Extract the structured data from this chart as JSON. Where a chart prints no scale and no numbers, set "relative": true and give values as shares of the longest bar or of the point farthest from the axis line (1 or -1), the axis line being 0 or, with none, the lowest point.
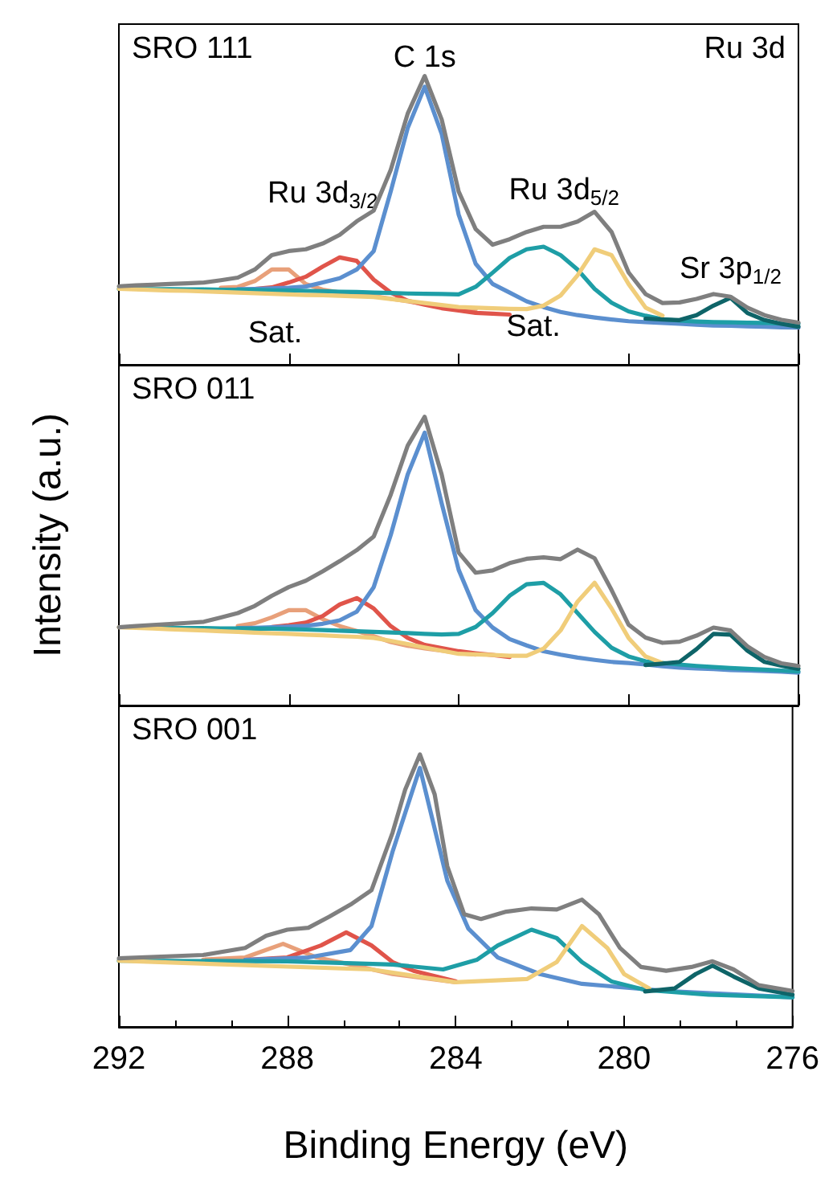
{
  "chart_data": [
    {
      "type": "line",
      "relative": true,
      "tick_labels": false,
      "categories": [
        null,
        null,
        null,
        null,
        null,
        null,
        null,
        null,
        null,
        null,
        null,
        null,
        null,
        null,
        null,
        null,
        null,
        null,
        null,
        null,
        null,
        null,
        null,
        null,
        null,
        null,
        null,
        null,
        null,
        null,
        null,
        null,
        null,
        null,
        null,
        null,
        null,
        null,
        null,
        null,
        null
      ],
      "annotations": [
        "SRO 111",
        "Ru 3d",
        "C 1s",
        "Ru 3d$_{3/2}$",
        "Ru 3d$_{5/2}$",
        "Sr 3p$_{1/2}$",
        "Sat.",
        "Sat."
      ],
      "series": [
        {
          "color": "#e8a07a",
          "values": [
            null,
            null,
            null,
            null,
            null,
            null,
            0.267,
            0.27,
            0.29,
            0.33,
            0.33,
            0.28,
            0.26,
            0.25,
            0.244,
            0.238,
            0.229,
            0.22,
            0.211,
            0.204,
            0.196,
            0.191,
            null,
            null,
            null,
            null,
            null,
            null,
            null,
            null,
            null,
            null,
            null,
            null,
            null,
            null,
            null,
            null,
            null,
            null,
            null
          ]
        },
        {
          "color": "#e0544a",
          "values": [
            null,
            null,
            null,
            null,
            null,
            null,
            null,
            null,
            0.263,
            0.268,
            0.285,
            0.305,
            0.34,
            0.372,
            0.36,
            0.295,
            0.25,
            0.222,
            0.208,
            0.196,
            0.188,
            0.18,
            0.177,
            0.174,
            null,
            null,
            null,
            null,
            null,
            null,
            null,
            null,
            null,
            null,
            null,
            null,
            null,
            null,
            null,
            null,
            null
          ]
        },
        {
          "color": "#5b8fcf",
          "values": [
            null,
            null,
            null,
            null,
            null,
            null,
            null,
            0.262,
            0.263,
            0.265,
            0.267,
            0.271,
            0.285,
            0.3,
            0.33,
            0.394,
            0.6,
            0.82,
            0.963,
            0.8,
            0.52,
            0.35,
            0.28,
            0.25,
            0.22,
            0.2,
            0.183,
            0.172,
            0.164,
            0.157,
            0.151,
            0.148,
            0.145,
            0.142,
            0.139,
            0.136,
            0.135,
            0.133,
            0.132,
            0.13,
            0.129
          ]
        },
        {
          "color": "#1e9ea6",
          "values": [
            0.263,
            0.263,
            0.262,
            0.262,
            0.261,
            0.261,
            0.26,
            0.26,
            0.259,
            0.258,
            0.258,
            0.256,
            0.255,
            0.253,
            0.252,
            0.25,
            0.249,
            0.247,
            0.246,
            0.245,
            0.244,
            0.27,
            0.319,
            0.37,
            0.4,
            0.409,
            0.38,
            0.33,
            0.263,
            0.215,
            0.185,
            0.17,
            0.158,
            0.153,
            0.15,
            0.148,
            0.147,
            0.146,
            0.145,
            0.143,
            0.142
          ]
        },
        {
          "color": "#f0cd7a",
          "values": [
            0.263,
            0.261,
            0.259,
            0.257,
            0.256,
            0.254,
            0.252,
            0.25,
            0.248,
            0.246,
            0.244,
            0.242,
            0.241,
            0.239,
            0.237,
            0.235,
            0.228,
            0.221,
            0.214,
            0.207,
            0.2,
            0.198,
            0.196,
            0.194,
            0.193,
            0.205,
            0.24,
            0.31,
            0.4,
            0.38,
            0.28,
            0.198,
            0.17,
            null,
            null,
            null,
            null,
            null,
            null,
            null,
            null
          ]
        },
        {
          "color": "#0e6468",
          "values": [
            null,
            null,
            null,
            null,
            null,
            null,
            null,
            null,
            null,
            null,
            null,
            null,
            null,
            null,
            null,
            null,
            null,
            null,
            null,
            null,
            null,
            null,
            null,
            null,
            null,
            null,
            null,
            null,
            null,
            null,
            null,
            0.16,
            0.157,
            0.155,
            0.172,
            0.205,
            0.232,
            0.179,
            0.155,
            0.142,
            0.132
          ]
        },
        {
          "color": "#7f7f7f",
          "values": [
            0.272,
            0.275,
            0.277,
            0.28,
            0.282,
            0.285,
            0.293,
            0.302,
            0.33,
            0.38,
            0.394,
            0.4,
            0.42,
            0.45,
            0.497,
            0.534,
            0.675,
            0.87,
            1,
            0.85,
            0.6,
            0.47,
            0.416,
            0.435,
            0.46,
            0.478,
            0.478,
            0.496,
            0.53,
            0.46,
            0.32,
            0.245,
            0.214,
            0.216,
            0.228,
            0.245,
            0.236,
            0.198,
            0.172,
            0.156,
            0.146
          ]
        }
      ]
    },
    {
      "type": "line",
      "relative": true,
      "tick_labels": false,
      "ylabel": "Intensity (a.u.)",
      "categories": [
        null,
        null,
        null,
        null,
        null,
        null,
        null,
        null,
        null,
        null,
        null,
        null,
        null,
        null,
        null,
        null,
        null,
        null,
        null,
        null,
        null,
        null,
        null,
        null,
        null,
        null,
        null,
        null,
        null,
        null,
        null,
        null,
        null,
        null,
        null,
        null,
        null,
        null,
        null,
        null,
        null
      ],
      "annotations": [
        "SRO 011"
      ],
      "series": [
        {
          "color": "#e8a07a",
          "values": [
            null,
            null,
            null,
            null,
            null,
            null,
            null,
            0.275,
            0.285,
            0.305,
            0.33,
            0.33,
            0.299,
            0.275,
            0.258,
            0.24,
            0.22,
            0.207,
            0.198,
            0.19,
            0.182,
            0.176,
            null,
            null,
            null,
            null,
            null,
            null,
            null,
            null,
            null,
            null,
            null,
            null,
            null,
            null,
            null,
            null,
            null,
            null,
            null
          ]
        },
        {
          "color": "#e0544a",
          "values": [
            null,
            null,
            null,
            null,
            null,
            null,
            null,
            null,
            null,
            0.272,
            0.278,
            0.287,
            0.31,
            0.35,
            0.372,
            0.336,
            0.275,
            0.234,
            0.21,
            0.199,
            0.188,
            0.181,
            0.175,
            0.168,
            null,
            null,
            null,
            null,
            null,
            null,
            null,
            null,
            null,
            null,
            null,
            null,
            null,
            null,
            null,
            null,
            null
          ]
        },
        {
          "color": "#5b8fcf",
          "values": [
            null,
            null,
            null,
            null,
            null,
            null,
            null,
            0.268,
            0.269,
            0.271,
            0.273,
            0.276,
            0.283,
            0.295,
            0.325,
            0.41,
            0.59,
            0.8,
            0.945,
            0.7,
            0.47,
            0.33,
            0.27,
            0.23,
            0.208,
            0.188,
            0.176,
            0.166,
            0.158,
            0.151,
            0.147,
            0.142,
            0.136,
            0.131,
            0.128,
            0.126,
            0.123,
            0.121,
            0.119,
            0.117,
            0.114
          ]
        },
        {
          "color": "#1e9ea6",
          "values": [
            null,
            null,
            0.27,
            0.269,
            0.268,
            0.268,
            0.267,
            0.267,
            0.266,
            0.266,
            0.265,
            0.263,
            0.261,
            0.259,
            0.257,
            0.255,
            0.253,
            0.251,
            0.248,
            0.246,
            0.248,
            0.272,
            0.32,
            0.38,
            0.42,
            0.425,
            0.385,
            0.32,
            0.255,
            0.2,
            0.17,
            0.153,
            0.147,
            0.142,
            0.137,
            0.133,
            0.13,
            0.127,
            0.124,
            0.121,
            0.118
          ]
        },
        {
          "color": "#f0cd7a",
          "values": [
            0.271,
            0.269,
            0.267,
            0.264,
            0.262,
            0.26,
            0.257,
            0.255,
            0.252,
            0.25,
            0.248,
            0.245,
            0.243,
            0.24,
            0.238,
            0.234,
            0.224,
            0.213,
            0.201,
            0.19,
            0.179,
            0.177,
            0.175,
            0.172,
            0.172,
            0.197,
            0.26,
            0.36,
            0.425,
            0.336,
            0.234,
            0.17,
            0.147,
            null,
            null,
            null,
            null,
            null,
            null,
            null,
            null
          ]
        },
        {
          "color": "#0e6468",
          "values": [
            null,
            null,
            null,
            null,
            null,
            null,
            null,
            null,
            null,
            null,
            null,
            null,
            null,
            null,
            null,
            null,
            null,
            null,
            null,
            null,
            null,
            null,
            null,
            null,
            null,
            null,
            null,
            null,
            null,
            null,
            null,
            0.14,
            0.145,
            0.151,
            0.195,
            0.248,
            0.245,
            0.19,
            0.151,
            0.138,
            0.127
          ]
        },
        {
          "color": "#7f7f7f",
          "values": [
            0.271,
            0.275,
            0.279,
            0.282,
            0.286,
            0.29,
            0.305,
            0.32,
            0.345,
            0.38,
            0.41,
            0.432,
            0.465,
            0.5,
            0.538,
            0.585,
            0.73,
            0.9,
            1,
            0.8,
            0.53,
            0.46,
            0.468,
            0.493,
            0.508,
            0.513,
            0.507,
            0.54,
            0.51,
            0.4,
            0.28,
            0.235,
            0.217,
            0.221,
            0.242,
            0.27,
            0.26,
            0.205,
            0.168,
            0.146,
            0.137
          ]
        }
      ]
    },
    {
      "type": "line",
      "relative": true,
      "xlim": [
        292,
        276
      ],
      "xticks": [
        292,
        288,
        284,
        280,
        276
      ],
      "tick_labels": "x",
      "xlabel": "Binding Energy (eV)",
      "annotations": [
        "SRO 001"
      ],
      "series": [
        {
          "color": "#e8a07a",
          "x": [
            290,
            289,
            288.1,
            287.3,
            286.5,
            285.5,
            284
          ],
          "values": [
            0.247,
            0.255,
            0.305,
            0.255,
            0.229,
            0.194,
            0.164
          ]
        },
        {
          "color": "#e0544a",
          "x": [
            289,
            288,
            287.2,
            286.6,
            286,
            285.5,
            285,
            284
          ],
          "values": [
            0.246,
            0.255,
            0.299,
            0.347,
            0.299,
            0.238,
            0.206,
            0.167
          ]
        },
        {
          "color": "#5b8fcf",
          "x": [
            289,
            287.5,
            286.5,
            286,
            285.5,
            284.85,
            284.2,
            283.7,
            283,
            282,
            281,
            279,
            276
          ],
          "values": [
            0.246,
            0.255,
            0.282,
            0.37,
            0.643,
            0.951,
            0.537,
            0.361,
            0.255,
            0.194,
            0.158,
            0.132,
            0.109
          ]
        },
        {
          "color": "#1e9ea6",
          "x": [
            292,
            288,
            285.5,
            284.3,
            283.5,
            283,
            282.2,
            281.6,
            281,
            280.3,
            279.5,
            278,
            276
          ],
          "values": [
            0.243,
            0.241,
            0.229,
            0.211,
            0.246,
            0.299,
            0.357,
            0.326,
            0.238,
            0.167,
            0.136,
            0.118,
            0.109
          ]
        },
        {
          "color": "#f0cd7a",
          "x": [
            292,
            286,
            284,
            282.3,
            281.6,
            281,
            280.4,
            280,
            279.4
          ],
          "values": [
            0.243,
            0.211,
            0.164,
            0.176,
            0.238,
            0.37,
            0.29,
            0.194,
            0.141
          ]
        },
        {
          "color": "#0e6468",
          "x": [
            279.5,
            278.8,
            278.3,
            277.9,
            277.4,
            276.8,
            276
          ],
          "values": [
            0.13,
            0.141,
            0.194,
            0.225,
            0.185,
            0.141,
            0.118
          ]
        },
        {
          "color": "#7f7f7f",
          "x": [
            292,
            290,
            289,
            288.5,
            288,
            287.5,
            287,
            286.5,
            286,
            285.5,
            285.2,
            284.85,
            284.5,
            284.2,
            283.8,
            283.4,
            282.8,
            282.2,
            281.6,
            281,
            280.6,
            280.1,
            279.6,
            279,
            278.4,
            277.9,
            277.4,
            276.8,
            276
          ],
          "values": [
            0.252,
            0.264,
            0.29,
            0.335,
            0.357,
            0.364,
            0.405,
            0.449,
            0.502,
            0.713,
            0.871,
            1,
            0.854,
            0.59,
            0.414,
            0.396,
            0.423,
            0.435,
            0.431,
            0.467,
            0.414,
            0.29,
            0.22,
            0.206,
            0.22,
            0.241,
            0.211,
            0.153,
            0.132
          ]
        }
      ]
    }
  ]
}
